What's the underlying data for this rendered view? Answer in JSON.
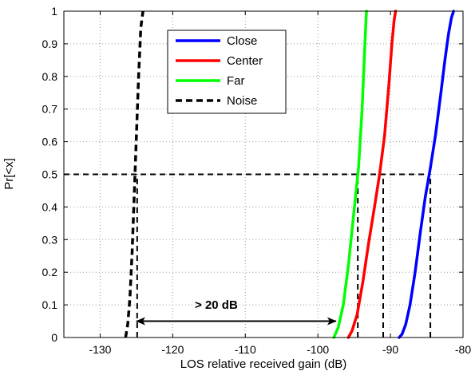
{
  "chart_data": {
    "type": "line",
    "title": "",
    "xlabel": "LOS relative received gain (dB)",
    "ylabel": "Pr[<x]",
    "xlim": [
      -135,
      -80
    ],
    "ylim": [
      0,
      1
    ],
    "xticks": [
      -130,
      -120,
      -110,
      -100,
      -90,
      -80
    ],
    "yticks": [
      0,
      0.1,
      0.2,
      0.3,
      0.4,
      0.5,
      0.6,
      0.7,
      0.8,
      0.9,
      1
    ],
    "grid": true,
    "legend_position": "top-center",
    "series": [
      {
        "name": "Close",
        "color": "#0000ff",
        "style": "solid",
        "x": [
          -88.8,
          -88.4,
          -87.9,
          -87.3,
          -86.6,
          -85.9,
          -85.2,
          -84.5,
          -83.8,
          -83.1,
          -82.5,
          -82.0,
          -81.6,
          -81.3
        ],
        "y": [
          0,
          0.01,
          0.04,
          0.1,
          0.2,
          0.32,
          0.43,
          0.52,
          0.62,
          0.74,
          0.85,
          0.93,
          0.98,
          1.0
        ]
      },
      {
        "name": "Center",
        "color": "#ff0000",
        "style": "solid",
        "x": [
          -95.8,
          -95.3,
          -94.6,
          -93.8,
          -93.0,
          -92.2,
          -91.5,
          -90.8,
          -90.2,
          -89.8,
          -89.5,
          -89.3
        ],
        "y": [
          0,
          0.02,
          0.07,
          0.17,
          0.29,
          0.4,
          0.5,
          0.62,
          0.78,
          0.9,
          0.97,
          1.0
        ]
      },
      {
        "name": "Far",
        "color": "#00ff00",
        "style": "solid",
        "x": [
          -97.8,
          -97.2,
          -96.5,
          -95.8,
          -95.1,
          -94.4,
          -93.9,
          -93.6,
          -93.4,
          -93.3
        ],
        "y": [
          0,
          0.03,
          0.1,
          0.22,
          0.37,
          0.52,
          0.7,
          0.86,
          0.96,
          1.0
        ]
      },
      {
        "name": "Noise",
        "color": "#000000",
        "style": "dashed",
        "x": [
          -126.5,
          -126.2,
          -125.9,
          -125.6,
          -125.3,
          -125.0,
          -124.7,
          -124.4,
          -124.1
        ],
        "y": [
          0,
          0.04,
          0.12,
          0.26,
          0.44,
          0.62,
          0.8,
          0.95,
          1.0
        ]
      }
    ],
    "reference_lines": {
      "median_y": 0.5,
      "median_x_start": -135,
      "median_x_end": -84.5,
      "verticals": [
        {
          "x": -124.9,
          "y_top": 0.5
        },
        {
          "x": -94.5,
          "y_top": 0.5
        },
        {
          "x": -91.0,
          "y_top": 0.5
        },
        {
          "x": -84.5,
          "y_top": 0.5
        }
      ]
    },
    "annotation": {
      "text": "> 20 dB",
      "arrow_from_x": -125.0,
      "arrow_to_x": -97.5,
      "arrow_y": 0.05,
      "text_x": -114,
      "text_y": 0.1
    }
  }
}
